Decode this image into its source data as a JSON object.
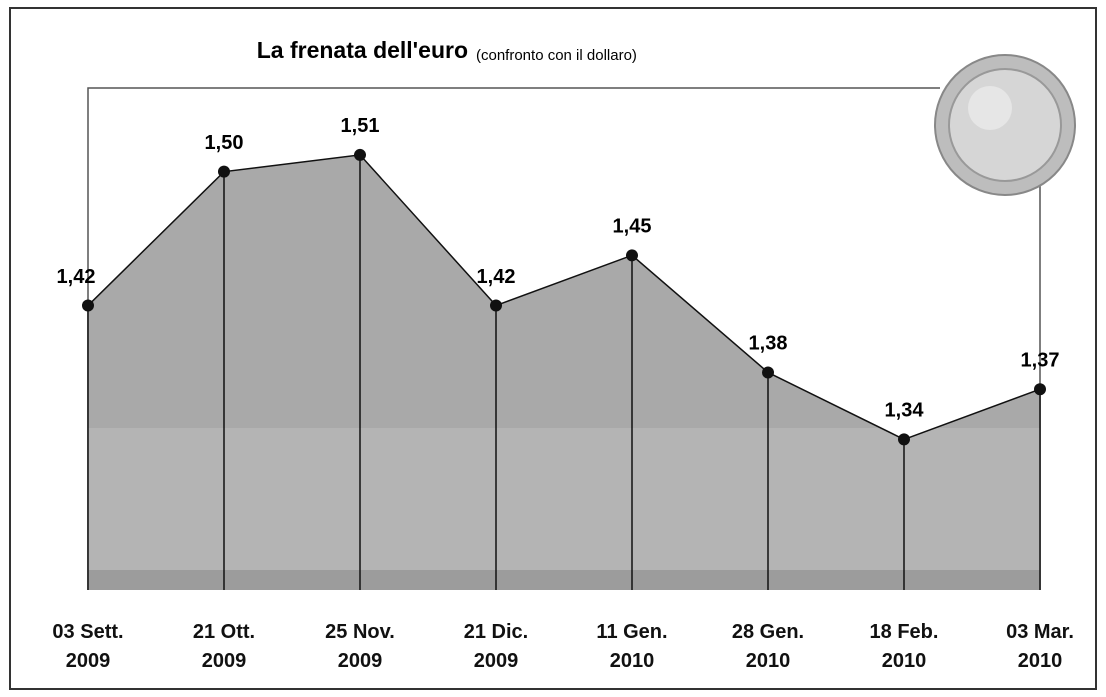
{
  "chart_data": {
    "type": "area",
    "title": "La frenata dell'euro",
    "subtitle": "(confronto con il dollaro)",
    "categories": [
      "03 Sett. 2009",
      "21 Ott. 2009",
      "25 Nov. 2009",
      "21 Dic. 2009",
      "11 Gen. 2010",
      "28 Gen. 2010",
      "18 Feb. 2010",
      "03 Mar. 2010"
    ],
    "values": [
      1.42,
      1.5,
      1.51,
      1.42,
      1.45,
      1.38,
      1.34,
      1.37
    ],
    "value_labels": [
      "1,42",
      "1,50",
      "1,51",
      "1,42",
      "1,45",
      "1,38",
      "1,34",
      "1,37"
    ],
    "color": "#a9a9a9",
    "ylim": [
      1.25,
      1.55
    ]
  }
}
